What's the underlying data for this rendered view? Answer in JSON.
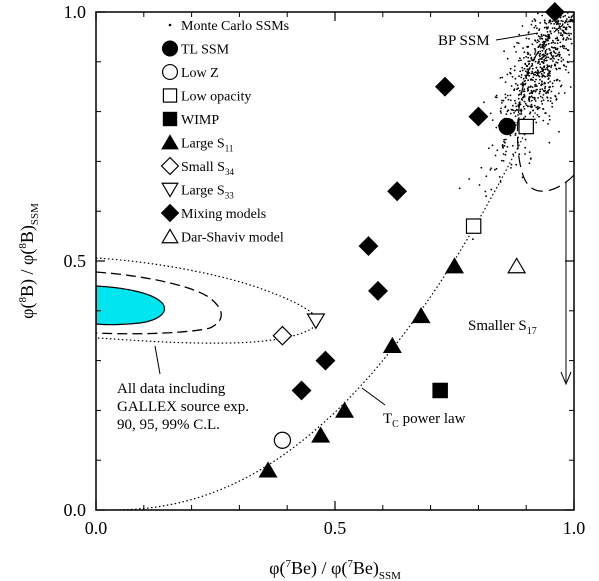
{
  "chart_data": {
    "type": "scatter",
    "xlabel": {
      "base": "φ(",
      "sup": "7",
      "mid": "Be) / φ(",
      "sup2": "7",
      "mid2": "Be)",
      "sub": "SSM"
    },
    "ylabel": {
      "base": "φ(",
      "sup": "8",
      "mid": "B) / φ(",
      "sup2": "8",
      "mid2": "B)",
      "sub": "SSM"
    },
    "xlim": [
      0,
      1
    ],
    "ylim": [
      0,
      1
    ],
    "xticks": [
      {
        "v": 0,
        "label": "0.0"
      },
      {
        "v": 0.5,
        "label": "0.5"
      },
      {
        "v": 1,
        "label": "1.0"
      }
    ],
    "yticks": [
      {
        "v": 0,
        "label": "0.0"
      },
      {
        "v": 0.5,
        "label": "0.5"
      },
      {
        "v": 1,
        "label": "1.0"
      }
    ],
    "grid": false,
    "legend_position": "top-left",
    "legend": [
      {
        "marker": "dot",
        "text": "Monte Carlo SSMs",
        "sub": ""
      },
      {
        "marker": "circle-filled",
        "text": "TL SSM",
        "sub": ""
      },
      {
        "marker": "circle-open",
        "text": "Low Z",
        "sub": ""
      },
      {
        "marker": "square-open",
        "text": "Low opacity",
        "sub": ""
      },
      {
        "marker": "square-filled",
        "text": "WIMP",
        "sub": ""
      },
      {
        "marker": "triangle-filled",
        "text": "Large S",
        "sub": "11"
      },
      {
        "marker": "diamond-open",
        "text": "Small S",
        "sub": "34"
      },
      {
        "marker": "triangle-down-open",
        "text": "Large S",
        "sub": "33"
      },
      {
        "marker": "diamond-filled",
        "text": "Mixing models",
        "sub": ""
      },
      {
        "marker": "triangle-open",
        "text": "Dar-Shaviv model",
        "sub": ""
      }
    ],
    "series": [
      {
        "name": "TL SSM",
        "marker": "circle-filled",
        "points": [
          [
            0.86,
            0.77
          ]
        ]
      },
      {
        "name": "Low Z",
        "marker": "circle-open",
        "points": [
          [
            0.39,
            0.14
          ]
        ]
      },
      {
        "name": "Low opacity",
        "marker": "square-open",
        "points": [
          [
            0.9,
            0.77
          ],
          [
            0.79,
            0.57
          ]
        ]
      },
      {
        "name": "WIMP",
        "marker": "square-filled",
        "points": [
          [
            0.72,
            0.24
          ]
        ]
      },
      {
        "name": "Large S11",
        "marker": "triangle-filled",
        "points": [
          [
            0.36,
            0.08
          ],
          [
            0.47,
            0.15
          ],
          [
            0.52,
            0.2
          ],
          [
            0.62,
            0.33
          ],
          [
            0.68,
            0.39
          ],
          [
            0.75,
            0.49
          ]
        ]
      },
      {
        "name": "Small S34",
        "marker": "diamond-open",
        "points": [
          [
            0.39,
            0.35
          ]
        ]
      },
      {
        "name": "Large S33",
        "marker": "triangle-down-open",
        "points": [
          [
            0.46,
            0.38
          ]
        ]
      },
      {
        "name": "Mixing models",
        "marker": "diamond-filled",
        "points": [
          [
            0.43,
            0.24
          ],
          [
            0.48,
            0.3
          ],
          [
            0.57,
            0.53
          ],
          [
            0.59,
            0.44
          ],
          [
            0.63,
            0.64
          ],
          [
            0.73,
            0.85
          ],
          [
            0.8,
            0.79
          ],
          [
            0.96,
            1.0
          ]
        ]
      },
      {
        "name": "Dar-Shaviv model",
        "marker": "triangle-open",
        "points": [
          [
            0.88,
            0.49
          ]
        ]
      }
    ],
    "annotations": {
      "bp_ssm": "BP SSM",
      "smaller_s17": {
        "text": "Smaller S",
        "sub": "17"
      },
      "tc_power_law": {
        "text": "T",
        "sub": "C",
        "rest": " power law"
      },
      "all_data": [
        "All data including",
        "GALLEX source exp.",
        "90, 95, 99% C.L."
      ]
    }
  }
}
